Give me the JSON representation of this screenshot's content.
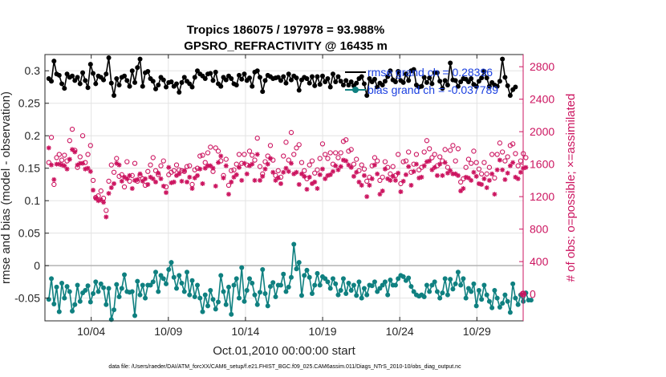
{
  "chart_data": {
    "type": "line",
    "title_line1": "Tropics 186075 / 197978 = 93.988%",
    "title_line2": "GPSRO_REFRACTIVITY @ 16435 m",
    "xlabel": "Oct.01,2010 00:00:00 start",
    "ylabel_left": "rmse and bias (model - observation)",
    "ylabel_right": "# of obs: o=possible; ×=assimilated",
    "footer": "data file: /Users/raeder/DAI/ATM_forcXX/CAM6_setup/f.e21.FHIST_BGC.f09_025.CAM6assim.011/Diags_NTrS_2010-10/obs_diag_output.nc",
    "x_ticks": [
      {
        "day": 4,
        "label": "10/04"
      },
      {
        "day": 9,
        "label": "10/09"
      },
      {
        "day": 14,
        "label": "10/14"
      },
      {
        "day": 19,
        "label": "10/19"
      },
      {
        "day": 24,
        "label": "10/24"
      },
      {
        "day": 29,
        "label": "10/29"
      }
    ],
    "y_left_ticks": [
      {
        "v": -0.05,
        "label": "-0.05"
      },
      {
        "v": 0,
        "label": "0"
      },
      {
        "v": 0.05,
        "label": "0.05"
      },
      {
        "v": 0.1,
        "label": "0.1"
      },
      {
        "v": 0.15,
        "label": "0.15"
      },
      {
        "v": 0.2,
        "label": "0.2"
      },
      {
        "v": 0.25,
        "label": "0.25"
      },
      {
        "v": 0.3,
        "label": "0.3"
      }
    ],
    "y_right_ticks": [
      {
        "v": 0,
        "label": "0"
      },
      {
        "v": 400,
        "label": "400"
      },
      {
        "v": 800,
        "label": "800"
      },
      {
        "v": 1200,
        "label": "1200"
      },
      {
        "v": 1600,
        "label": "1600"
      },
      {
        "v": 2000,
        "label": "2000"
      },
      {
        "v": 2400,
        "label": "2400"
      },
      {
        "v": 2800,
        "label": "2800"
      }
    ],
    "xlim": [
      1.0,
      32.0
    ],
    "ylim_left": [
      -0.085,
      0.325
    ],
    "ylim_right": [
      -330,
      2950
    ],
    "grid": true,
    "legend_position": "top-right",
    "colors": {
      "rmse": "#000000",
      "bias": "#0f8080",
      "obs": "#cc1560",
      "zero_line": "#b3b3b3",
      "legend_text": "#1a3fe0"
    },
    "legend": [
      {
        "label": "rmse grand ch = 0.28396"
      },
      {
        "label": "bias grand ch = -0.037789"
      }
    ],
    "rmse_values": [
      0.288,
      0.284,
      0.315,
      0.295,
      0.293,
      0.28,
      0.273,
      0.295,
      0.29,
      0.292,
      0.285,
      0.29,
      0.28,
      0.297,
      0.285,
      0.274,
      0.31,
      0.296,
      0.28,
      0.292,
      0.29,
      0.286,
      0.295,
      0.32,
      0.281,
      0.262,
      0.288,
      0.278,
      0.29,
      0.292,
      0.285,
      0.276,
      0.3,
      0.282,
      0.305,
      0.318,
      0.276,
      0.297,
      0.299,
      0.288,
      0.284,
      0.272,
      0.278,
      0.29,
      0.286,
      0.275,
      0.282,
      0.283,
      0.276,
      0.28,
      0.267,
      0.282,
      0.29,
      0.284,
      0.28,
      0.275,
      0.29,
      0.3,
      0.295,
      0.292,
      0.288,
      0.295,
      0.296,
      0.285,
      0.298,
      0.28,
      0.276,
      0.29,
      0.286,
      0.292,
      0.288,
      0.28,
      0.278,
      0.293,
      0.287,
      0.295,
      0.285,
      0.289,
      0.276,
      0.298,
      0.3,
      0.29,
      0.268,
      0.285,
      0.293,
      0.291,
      0.288,
      0.289,
      0.29,
      0.285,
      0.291,
      0.281,
      0.295,
      0.286,
      0.292,
      0.289,
      0.27,
      0.286,
      0.29,
      0.288,
      0.281,
      0.291,
      0.277,
      0.291,
      0.279,
      0.292,
      0.283,
      0.288,
      0.275,
      0.295,
      0.283,
      0.291,
      0.284,
      0.278,
      0.285,
      0.278,
      0.283,
      0.277,
      0.281,
      0.288,
      0.291,
      0.28,
      0.262,
      0.288,
      0.283,
      0.287,
      0.275,
      0.281,
      0.278,
      0.284,
      0.291,
      0.3,
      0.286,
      0.283,
      0.299,
      0.285,
      0.282,
      0.295,
      0.285,
      0.3,
      0.302,
      0.278,
      0.275,
      0.276,
      0.29,
      0.282,
      0.289,
      0.28,
      0.297,
      0.297,
      0.284,
      0.273,
      0.285,
      0.278,
      0.312,
      0.286,
      0.285,
      0.276,
      0.283,
      0.288,
      0.287,
      0.283,
      0.288,
      0.279,
      0.276,
      0.284,
      0.289,
      0.299,
      0.289,
      0.276,
      0.282,
      0.278,
      0.276,
      0.284,
      0.318,
      0.29,
      0.277,
      0.262,
      0.271,
      0.275
    ],
    "bias_values": [
      -0.052,
      -0.02,
      -0.059,
      -0.033,
      -0.071,
      -0.027,
      -0.05,
      -0.032,
      -0.04,
      -0.07,
      -0.06,
      -0.03,
      -0.055,
      -0.042,
      -0.038,
      -0.031,
      -0.056,
      -0.043,
      -0.025,
      -0.04,
      -0.028,
      -0.034,
      -0.06,
      -0.035,
      -0.083,
      -0.068,
      -0.029,
      -0.048,
      -0.035,
      -0.014,
      -0.04,
      -0.041,
      -0.04,
      -0.077,
      -0.024,
      -0.045,
      -0.03,
      -0.05,
      -0.03,
      -0.03,
      -0.025,
      -0.01,
      -0.04,
      -0.015,
      -0.02,
      -0.028,
      -0.006,
      0.005,
      -0.018,
      -0.035,
      -0.015,
      -0.027,
      -0.04,
      -0.01,
      -0.045,
      -0.023,
      -0.048,
      -0.03,
      -0.05,
      -0.071,
      -0.045,
      -0.062,
      -0.038,
      -0.052,
      -0.067,
      -0.056,
      -0.015,
      -0.04,
      -0.06,
      -0.033,
      -0.075,
      -0.03,
      -0.02,
      -0.05,
      -0.003,
      -0.055,
      -0.038,
      -0.02,
      -0.027,
      -0.045,
      -0.06,
      -0.041,
      -0.006,
      -0.043,
      -0.062,
      -0.032,
      -0.026,
      -0.048,
      -0.03,
      -0.03,
      -0.013,
      -0.04,
      -0.033,
      -0.018,
      0.033,
      -0.005,
      0.005,
      -0.046,
      -0.015,
      -0.007,
      -0.018,
      -0.043,
      -0.03,
      -0.012,
      -0.03,
      -0.017,
      -0.02,
      -0.025,
      -0.035,
      -0.02,
      -0.028,
      -0.045,
      -0.038,
      -0.02,
      -0.043,
      -0.027,
      -0.038,
      -0.03,
      -0.046,
      -0.025,
      -0.05,
      -0.035,
      -0.045,
      -0.03,
      -0.031,
      -0.025,
      -0.04,
      -0.035,
      -0.03,
      -0.025,
      -0.045,
      -0.022,
      -0.03,
      -0.03,
      -0.02,
      -0.015,
      -0.017,
      -0.023,
      -0.019,
      -0.032,
      -0.04,
      -0.045,
      -0.047,
      -0.045,
      -0.048,
      -0.03,
      -0.04,
      -0.03,
      -0.025,
      -0.04,
      -0.05,
      -0.042,
      -0.02,
      -0.045,
      -0.021,
      -0.036,
      -0.028,
      -0.01,
      -0.03,
      -0.02,
      -0.05,
      -0.035,
      -0.04,
      -0.028,
      -0.062,
      -0.038,
      -0.052,
      -0.03,
      -0.045,
      -0.055,
      -0.065,
      -0.038,
      -0.05,
      -0.064,
      -0.058,
      -0.045,
      -0.055,
      -0.072,
      -0.028,
      -0.05,
      -0.06,
      -0.045,
      -0.055,
      -0.042,
      -0.053,
      -0.053
    ],
    "obs_possible": [
      1620,
      1930,
      1350,
      1680,
      1720,
      1650,
      1710,
      1640,
      1890,
      2030,
      1770,
      1560,
      1690,
      1950,
      1620,
      1720,
      1830,
      1400,
      1190,
      1210,
      1270,
      1180,
      1030,
      1390,
      1590,
      1500,
      1670,
      1450,
      1470,
      1320,
      1630,
      1390,
      1460,
      1610,
      1390,
      1460,
      1420,
      1340,
      1510,
      1590,
      1680,
      1520,
      1470,
      1580,
      1640,
      1320,
      1470,
      1500,
      1520,
      1590,
      1530,
      1520,
      1510,
      1570,
      1580,
      1350,
      1530,
      1550,
      1700,
      1710,
      1620,
      1740,
      1810,
      1510,
      1800,
      1760,
      1640,
      1460,
      1660,
      1340,
      1520,
      1530,
      1600,
      1720,
      1610,
      1720,
      1590,
      1760,
      1710,
      1650,
      1920,
      1570,
      1480,
      1630,
      1700,
      1830,
      1650,
      1460,
      1520,
      1440,
      1700,
      1870,
      1650,
      1990,
      1720,
      1800,
      1840,
      1620,
      1520,
      1420,
      1590,
      1640,
      1490,
      1530,
      1670,
      1850,
      1720,
      1670,
      1740,
      1600,
      1740,
      1680,
      1740,
      1880,
      1900,
      1760,
      1780,
      1600,
      1660,
      1520,
      1590,
      1540,
      1390,
      1440,
      1580,
      1680,
      1640,
      1400,
      1440,
      1630,
      1560,
      1480,
      1570,
      1460,
      1720,
      1360,
      1630,
      1640,
      1750,
      1500,
      1600,
      1720,
      1530,
      1560,
      1750,
      1890,
      1790,
      1680,
      1720,
      1580,
      1690,
      1640,
      1780,
      1560,
      1770,
      1830,
      1640,
      1790,
      1380,
      1420,
      1560,
      1660,
      1610,
      1760,
      1620,
      1540,
      1480,
      1620,
      1480,
      1560,
      1720,
      1430,
      1720,
      1860,
      1750,
      1640,
      1690,
      1830,
      1850,
      1730,
      1580,
      1640,
      1730,
      1680
    ],
    "obs_assimilated": [
      1800,
      1590,
      1410,
      1600,
      1600,
      1590,
      1580,
      1540,
      1660,
      1780,
      1750,
      1590,
      1610,
      1610,
      1540,
      1550,
      1510,
      1280,
      1180,
      1150,
      1160,
      1130,
      950,
      1240,
      1310,
      1360,
      1610,
      1590,
      1390,
      1440,
      1420,
      1460,
      1300,
      1400,
      1410,
      1480,
      1390,
      1420,
      1350,
      1440,
      1420,
      1380,
      1490,
      1420,
      1330,
      1250,
      1560,
      1370,
      1380,
      1460,
      1480,
      1390,
      1520,
      1380,
      1440,
      1300,
      1430,
      1460,
      1540,
      1360,
      1550,
      1580,
      1580,
      1550,
      1330,
      1620,
      1700,
      1430,
      1580,
      1230,
      1380,
      1440,
      1470,
      1560,
      1400,
      1610,
      1480,
      1580,
      1600,
      1400,
      1720,
      1400,
      1450,
      1540,
      1600,
      1670,
      1500,
      1400,
      1430,
      1360,
      1500,
      1550,
      1510,
      1610,
      1480,
      1500,
      1350,
      1480,
      1450,
      1290,
      1440,
      1360,
      1380,
      1300,
      1470,
      1540,
      1420,
      1460,
      1470,
      1510,
      1580,
      1530,
      1570,
      1650,
      1640,
      1590,
      1560,
      1450,
      1500,
      1380,
      1340,
      1460,
      1200,
      1340,
      1420,
      1590,
      1480,
      1230,
      1270,
      1540,
      1420,
      1400,
      1450,
      1400,
      1490,
      1260,
      1390,
      1470,
      1570,
      1340,
      1510,
      1600,
      1430,
      1440,
      1580,
      1630,
      1640,
      1530,
      1560,
      1460,
      1600,
      1460,
      1620,
      1490,
      1520,
      1480,
      1480,
      1460,
      1270,
      1300,
      1440,
      1430,
      1400,
      1500,
      1450,
      1360,
      1350,
      1420,
      1310,
      1400,
      1480,
      1230,
      1530,
      1650,
      1530,
      1410,
      1490,
      1580,
      1620,
      1440,
      1420,
      1500,
      1550,
      1560
    ]
  }
}
